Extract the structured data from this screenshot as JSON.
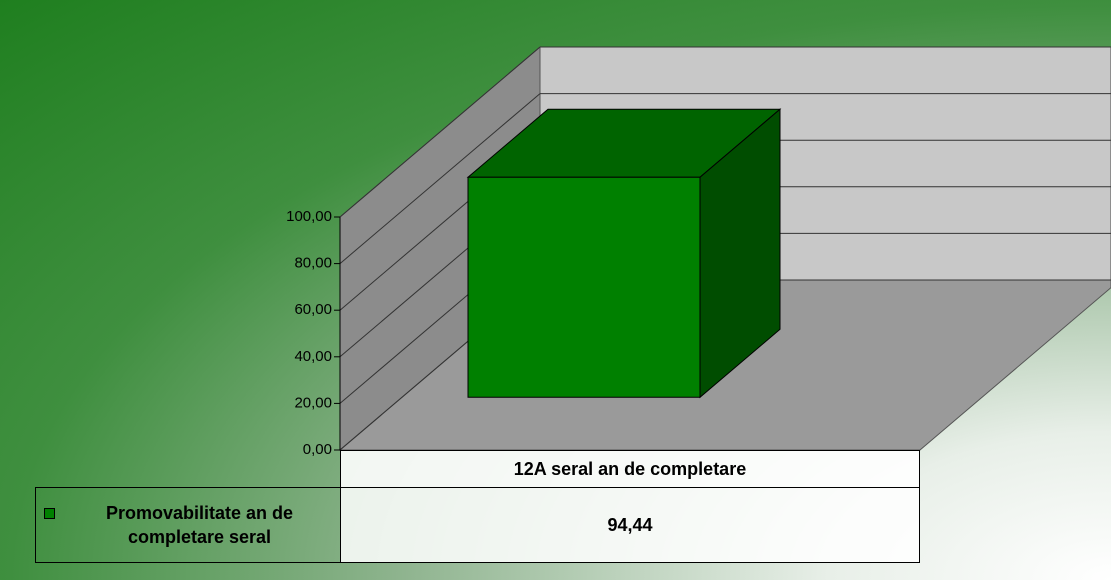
{
  "chart_data": {
    "type": "bar3d",
    "categories": [
      "12A seral an de completare"
    ],
    "series": [
      {
        "name": "Promovabilitate an de completare seral",
        "color": "#008000",
        "values": [
          94.44
        ],
        "value_labels": [
          "94,44"
        ]
      }
    ],
    "ylim": [
      0,
      100
    ],
    "yticks": [
      {
        "value": 0,
        "label": "0,00"
      },
      {
        "value": 20,
        "label": "20,00"
      },
      {
        "value": 40,
        "label": "40,00"
      },
      {
        "value": 60,
        "label": "60,00"
      },
      {
        "value": 80,
        "label": "80,00"
      },
      {
        "value": 100,
        "label": "100,00"
      }
    ],
    "grid": true
  }
}
